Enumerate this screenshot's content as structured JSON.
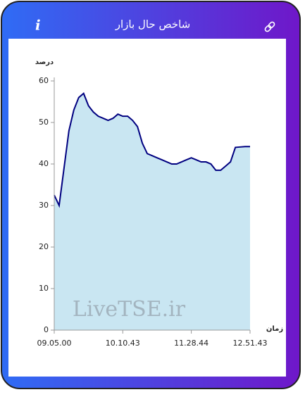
{
  "header": {
    "title": "شاخص حال بازار"
  },
  "chart_data": {
    "type": "line",
    "y_label": "درصد",
    "x_label": "زمان",
    "watermark": "LiveTSE.ir",
    "categories": [
      "09.05.00",
      null,
      null,
      null,
      null,
      null,
      null,
      null,
      null,
      null,
      null,
      null,
      null,
      null,
      "10.10.43",
      null,
      null,
      null,
      null,
      null,
      null,
      null,
      null,
      null,
      null,
      null,
      null,
      null,
      "11.28.44",
      null,
      null,
      null,
      null,
      null,
      null,
      null,
      null,
      null,
      null,
      null,
      "12.51.43"
    ],
    "series": [
      {
        "name": "شاخص",
        "color": "#000080",
        "fill": "#c9e6f2",
        "values": [
          32.5,
          30,
          39,
          48,
          53,
          56,
          57,
          54,
          52.5,
          51.5,
          51,
          50.5,
          51,
          52,
          51.5,
          51.5,
          50.5,
          49,
          45,
          42.5,
          42,
          41.5,
          41,
          40.5,
          40,
          40,
          40.5,
          41,
          41.5,
          41,
          40.5,
          40.5,
          40,
          38.5,
          38.5,
          39.5,
          40.5,
          44,
          44.1,
          44.2,
          44.2
        ]
      }
    ],
    "ylim": [
      0,
      60
    ],
    "yticks": [
      0,
      10,
      20,
      30,
      40,
      50,
      60
    ]
  }
}
